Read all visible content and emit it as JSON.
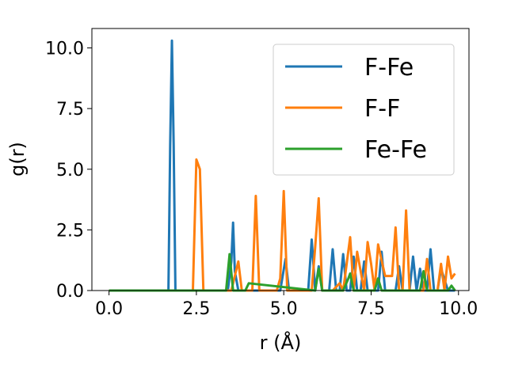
{
  "chart_data": {
    "type": "line",
    "xlabel": "r (Å)",
    "ylabel": "g(r)",
    "xlim": [
      -0.49,
      10.3
    ],
    "ylim": [
      0,
      10.8
    ],
    "xticks": [
      0.0,
      2.5,
      5.0,
      7.5,
      10.0
    ],
    "xtick_labels": [
      "0.0",
      "2.5",
      "5.0",
      "7.5",
      "10.0"
    ],
    "yticks": [
      0.0,
      2.5,
      5.0,
      7.5,
      10.0
    ],
    "ytick_labels": [
      "0.0",
      "2.5",
      "5.0",
      "7.5",
      "10.0"
    ],
    "grid": false,
    "legend_position": "top-right",
    "series": [
      {
        "name": "F-Fe",
        "color": "#1f77b4",
        "x": [
          0.0,
          1.7,
          1.75,
          1.8,
          1.85,
          1.9,
          3.4,
          3.5,
          3.55,
          3.6,
          3.7,
          4.9,
          5.05,
          5.15,
          5.25,
          5.4,
          5.7,
          5.8,
          5.9,
          6.0,
          6.1,
          6.3,
          6.4,
          6.5,
          6.6,
          6.7,
          6.8,
          6.9,
          7.0,
          7.1,
          7.2,
          7.3,
          7.4,
          7.7,
          7.8,
          7.9,
          8.0,
          8.2,
          8.3,
          8.4,
          8.6,
          8.7,
          8.8,
          8.9,
          9.0,
          9.1,
          9.2,
          9.3,
          9.4,
          9.5,
          9.7,
          9.8,
          9.9
        ],
        "y": [
          0.0,
          0.0,
          6.0,
          10.3,
          6.0,
          0.0,
          0.0,
          1.2,
          2.8,
          0.8,
          0.0,
          0.0,
          1.3,
          0.0,
          0.0,
          0.0,
          0.0,
          2.1,
          0.0,
          1.0,
          0.0,
          0.0,
          1.7,
          0.0,
          0.0,
          1.5,
          0.0,
          0.0,
          1.4,
          0.0,
          0.0,
          1.2,
          0.0,
          0.0,
          1.6,
          0.0,
          0.0,
          0.0,
          1.0,
          0.0,
          0.0,
          1.4,
          0.0,
          0.9,
          0.0,
          0.0,
          1.7,
          0.0,
          0.0,
          0.9,
          0.0,
          0.0,
          0.0
        ]
      },
      {
        "name": "F-F",
        "color": "#ff7f0e",
        "x": [
          0.0,
          2.4,
          2.5,
          2.6,
          2.7,
          3.5,
          3.7,
          3.8,
          3.9,
          4.1,
          4.2,
          4.3,
          4.8,
          4.9,
          5.0,
          5.1,
          5.6,
          5.8,
          5.9,
          6.0,
          6.1,
          6.4,
          6.6,
          6.7,
          6.9,
          7.0,
          7.1,
          7.3,
          7.4,
          7.5,
          7.6,
          7.7,
          7.9,
          8.0,
          8.1,
          8.2,
          8.3,
          8.4,
          8.5,
          8.6,
          8.7,
          8.8,
          9.0,
          9.1,
          9.2,
          9.3,
          9.4,
          9.5,
          9.6,
          9.7,
          9.8,
          9.9
        ],
        "y": [
          0.0,
          0.0,
          5.4,
          5.0,
          0.0,
          0.0,
          1.2,
          0.0,
          0.0,
          0.0,
          3.9,
          0.0,
          0.0,
          0.5,
          4.1,
          0.0,
          0.0,
          0.0,
          1.8,
          3.8,
          0.0,
          0.0,
          0.3,
          0.0,
          2.2,
          0.0,
          1.6,
          0.0,
          2.0,
          1.1,
          0.0,
          1.9,
          0.6,
          0.6,
          0.6,
          2.6,
          0.0,
          0.0,
          3.3,
          0.0,
          0.0,
          0.0,
          0.0,
          1.3,
          0.0,
          0.0,
          0.0,
          1.1,
          0.0,
          1.4,
          0.5,
          0.7
        ]
      },
      {
        "name": "Fe-Fe",
        "color": "#2ca02c",
        "x": [
          0.0,
          3.35,
          3.45,
          3.55,
          3.6,
          3.9,
          4.0,
          5.9,
          6.0,
          6.1,
          6.6,
          6.7,
          6.85,
          6.9,
          7.0,
          7.6,
          7.7,
          7.8,
          7.9,
          8.9,
          9.0,
          9.1,
          9.3,
          9.7,
          9.8,
          9.9
        ],
        "y": [
          0.0,
          0.0,
          1.5,
          0.0,
          0.0,
          0.0,
          0.3,
          0.0,
          0.9,
          0.0,
          0.0,
          0.0,
          0.5,
          0.7,
          0.0,
          0.0,
          0.5,
          0.0,
          0.0,
          0.0,
          0.8,
          0.0,
          0.0,
          0.0,
          0.2,
          0.0
        ]
      }
    ]
  }
}
